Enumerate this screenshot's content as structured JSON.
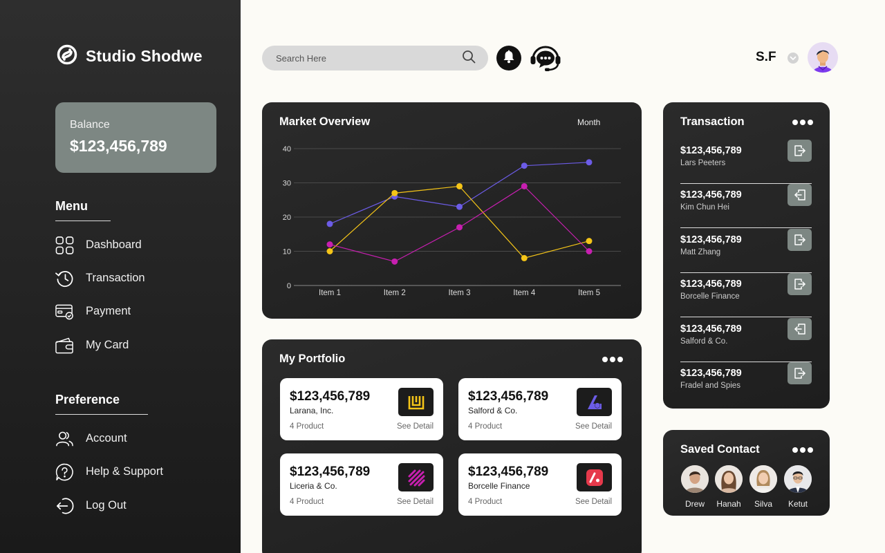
{
  "brand": {
    "name": "Studio Shodwe"
  },
  "balance": {
    "label": "Balance",
    "value": "$123,456,789"
  },
  "menu": {
    "title": "Menu",
    "items": [
      {
        "label": "Dashboard",
        "icon": "grid-icon"
      },
      {
        "label": "Transaction",
        "icon": "history-icon"
      },
      {
        "label": "Payment",
        "icon": "payment-card-icon"
      },
      {
        "label": "My Card",
        "icon": "wallet-icon"
      }
    ]
  },
  "preference": {
    "title": "Preference",
    "items": [
      {
        "label": "Account",
        "icon": "users-icon"
      },
      {
        "label": "Help & Support",
        "icon": "help-icon"
      },
      {
        "label": "Log Out",
        "icon": "logout-icon"
      }
    ]
  },
  "search": {
    "placeholder": "Search Here"
  },
  "user": {
    "initials": "S.F"
  },
  "market": {
    "title": "Market Overview",
    "period": "Month",
    "chart_data": {
      "type": "line",
      "categories": [
        "Item 1",
        "Item 2",
        "Item 3",
        "Item 4",
        "Item 5"
      ],
      "ylim": [
        0,
        40
      ],
      "yticks": [
        0,
        10,
        20,
        30,
        40
      ],
      "grid": true,
      "series": [
        {
          "color": "#6c5ce7",
          "values": [
            18,
            26,
            23,
            35,
            36
          ]
        },
        {
          "color": "#f5c518",
          "values": [
            10,
            27,
            29,
            8,
            13
          ]
        },
        {
          "color": "#c71fb0",
          "values": [
            12,
            7,
            17,
            29,
            10
          ]
        }
      ]
    }
  },
  "portfolio": {
    "title": "My Portfolio",
    "items": [
      {
        "amount": "$123,456,789",
        "company": "Larana, Inc.",
        "products": "4 Product",
        "detail": "See Detail",
        "logo": "larana-logo-icon",
        "logo_color": "#f5c518"
      },
      {
        "amount": "$123,456,789",
        "company": "Salford & Co.",
        "products": "4 Product",
        "detail": "See Detail",
        "logo": "salford-logo-icon",
        "logo_color": "#6c5ce7"
      },
      {
        "amount": "$123,456,789",
        "company": "Liceria & Co.",
        "products": "4 Product",
        "detail": "See Detail",
        "logo": "liceria-logo-icon",
        "logo_color": "#c71fb0"
      },
      {
        "amount": "$123,456,789",
        "company": "Borcelle Finance",
        "products": "4 Product",
        "detail": "See Detail",
        "logo": "borcelle-logo-icon",
        "logo_color": "#e6394b"
      }
    ]
  },
  "transactions": {
    "title": "Transaction",
    "items": [
      {
        "amount": "$123,456,789",
        "name": "Lars Peeters",
        "direction": "outgoing"
      },
      {
        "amount": "$123,456,789",
        "name": "Kim Chun Hei",
        "direction": "incoming"
      },
      {
        "amount": "$123,456,789",
        "name": "Matt Zhang",
        "direction": "outgoing"
      },
      {
        "amount": "$123,456,789",
        "name": "Borcelle Finance",
        "direction": "outgoing"
      },
      {
        "amount": "$123,456,789",
        "name": "Salford & Co.",
        "direction": "incoming"
      },
      {
        "amount": "$123,456,789",
        "name": "Fradel and Spies",
        "direction": "outgoing"
      }
    ]
  },
  "saved_contacts": {
    "title": "Saved Contact",
    "items": [
      {
        "name": "Drew"
      },
      {
        "name": "Hanah"
      },
      {
        "name": "Silva"
      },
      {
        "name": "Ketut"
      }
    ]
  }
}
